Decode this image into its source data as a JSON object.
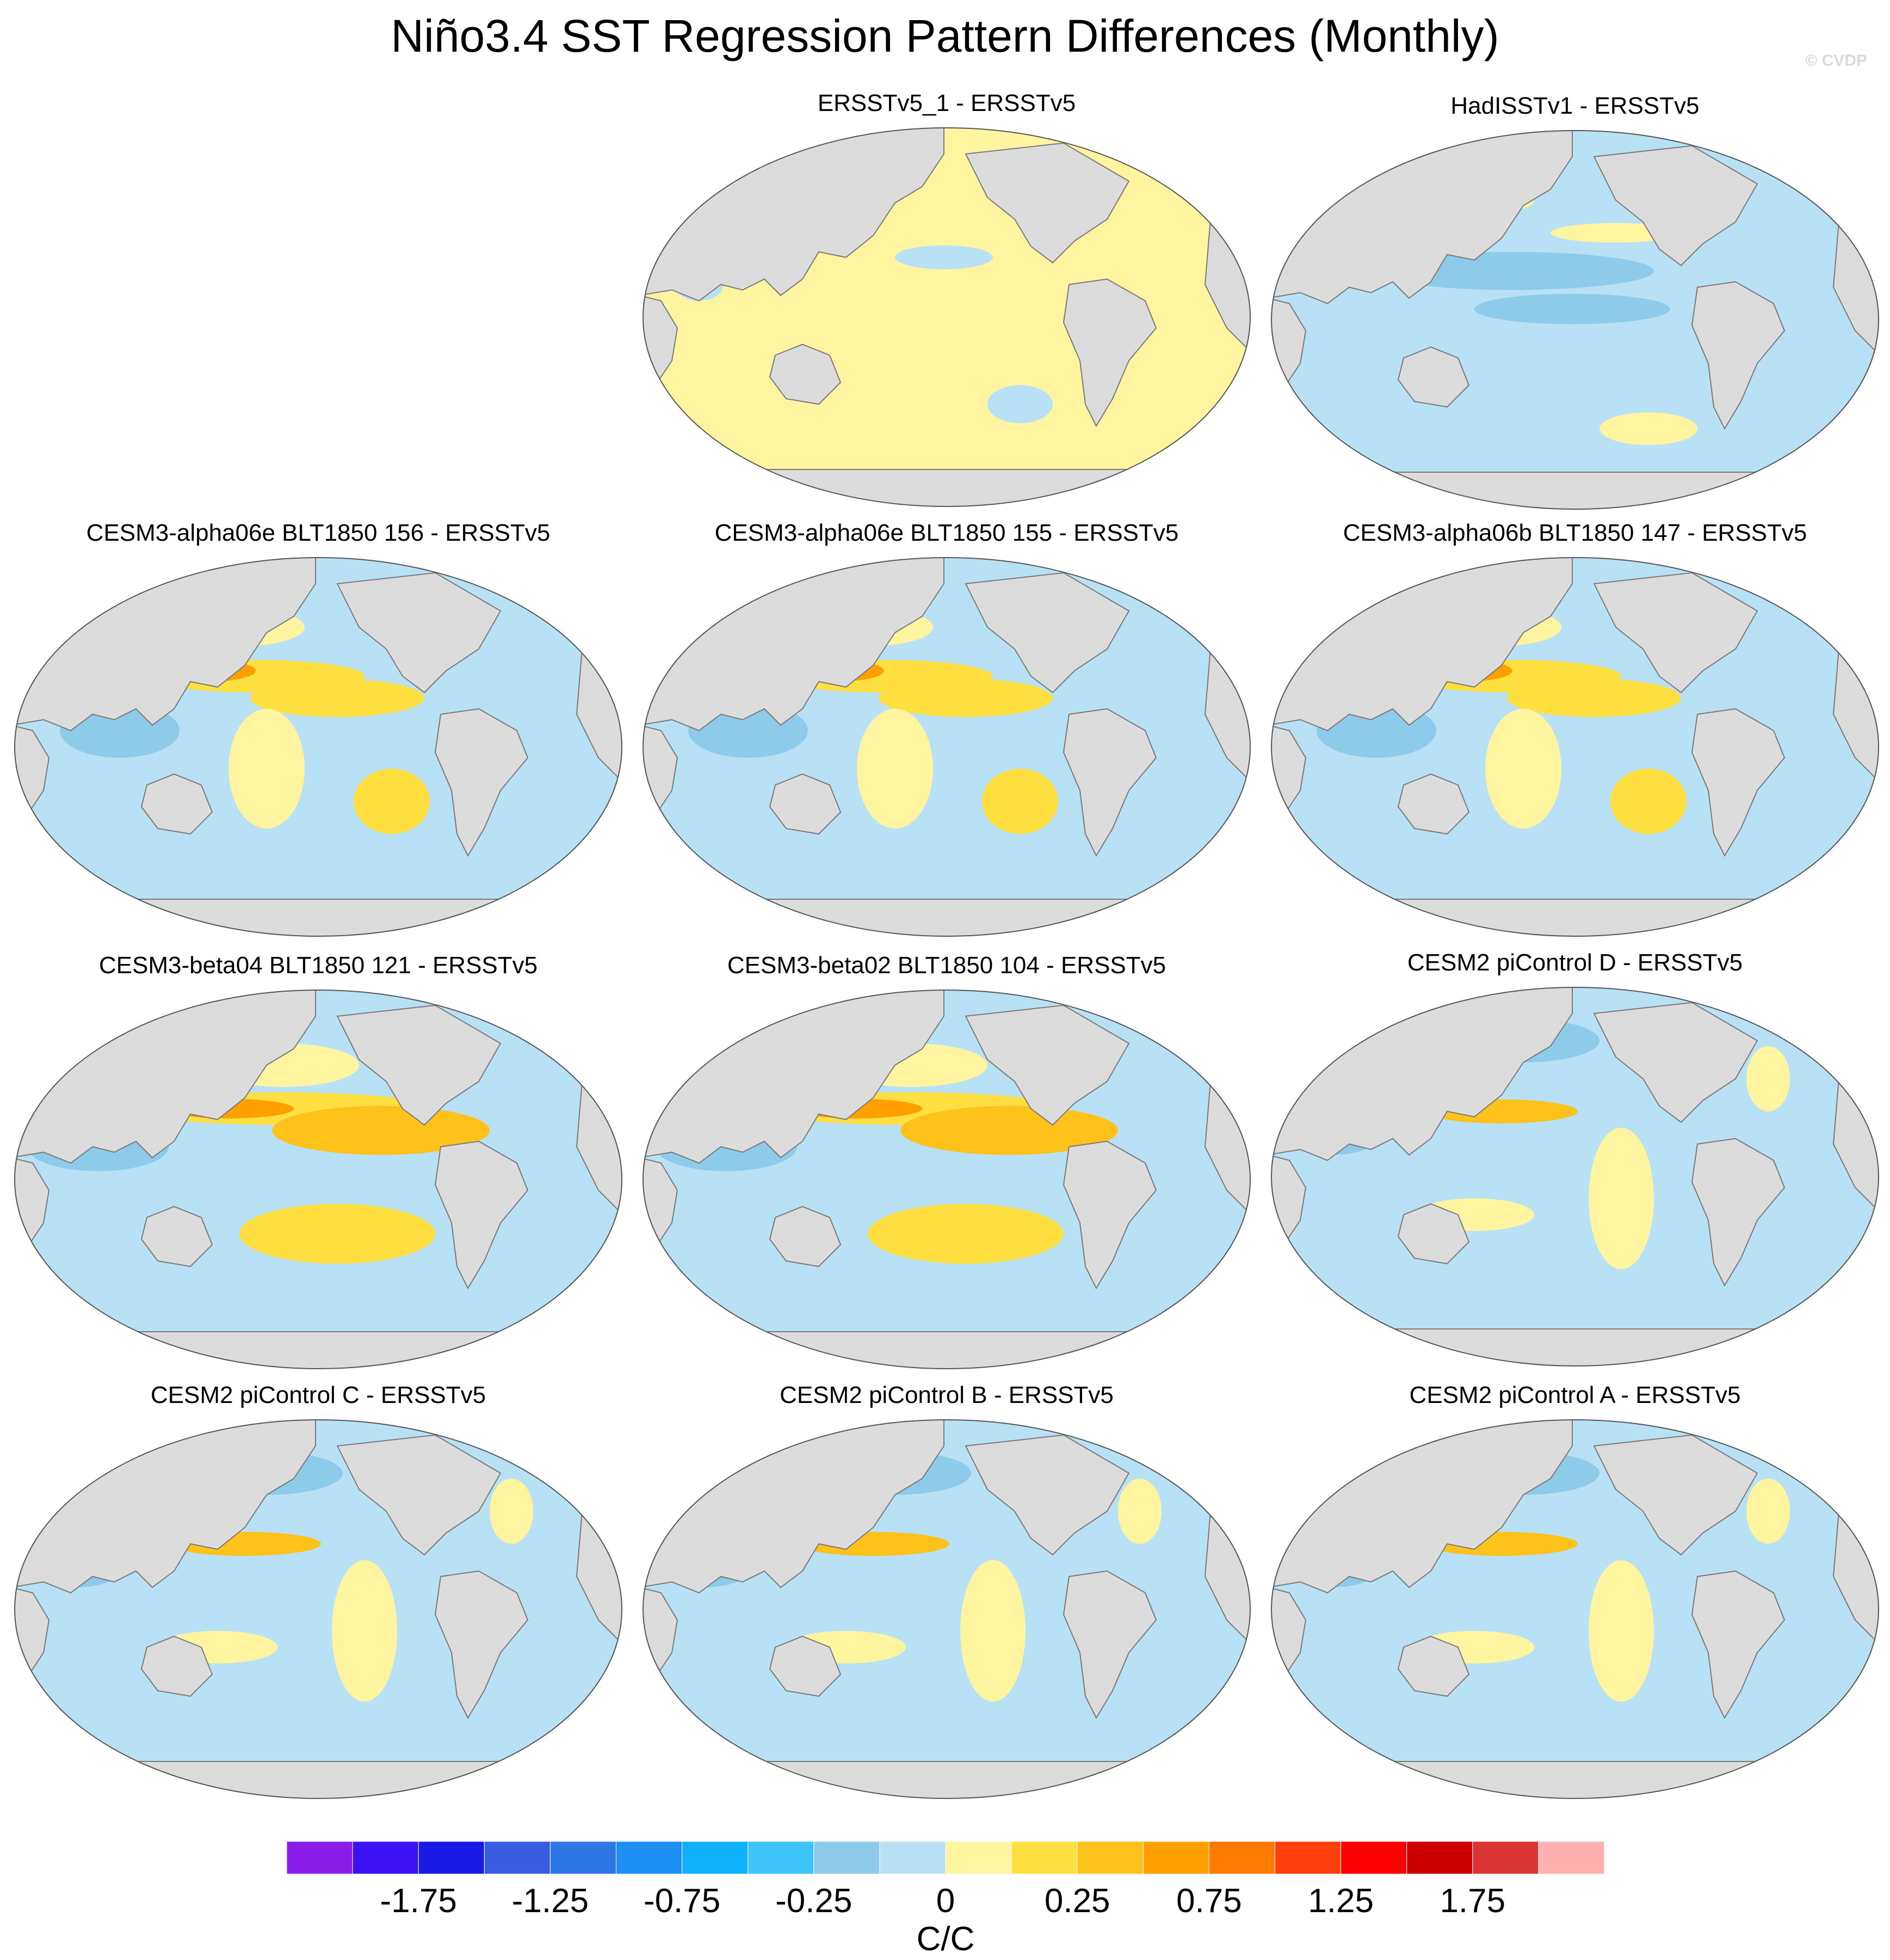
{
  "title": "Niño3.4 SST Regression Pattern Differences (Monthly)",
  "watermark": "© CVDP",
  "panels": [
    {
      "title": "ERSSTv5_1 - ERSSTv5",
      "style": "uniform-positive"
    },
    {
      "title": "HadISSTv1 - ERSSTv5",
      "style": "mostly-negative"
    },
    {
      "title": "CESM3-alpha06e BLT1850 156 - ERSSTv5",
      "style": "model"
    },
    {
      "title": "CESM3-alpha06e BLT1850 155 - ERSSTv5",
      "style": "model"
    },
    {
      "title": "CESM3-alpha06b BLT1850 147 - ERSSTv5",
      "style": "model"
    },
    {
      "title": "CESM3-beta04 BLT1850 121 - ERSSTv5",
      "style": "model-strong"
    },
    {
      "title": "CESM3-beta02 BLT1850 104 - ERSSTv5",
      "style": "model-strong"
    },
    {
      "title": "CESM2 piControl D - ERSSTv5",
      "style": "cesm2"
    },
    {
      "title": "CESM2 piControl C - ERSSTv5",
      "style": "cesm2"
    },
    {
      "title": "CESM2 piControl B - ERSSTv5",
      "style": "cesm2"
    },
    {
      "title": "CESM2 piControl A - ERSSTv5",
      "style": "cesm2"
    }
  ],
  "colorbar": {
    "unit": "C/C",
    "tick_labels": [
      "-1.75",
      "-1.25",
      "-0.75",
      "-0.25",
      "0",
      "0.25",
      "0.75",
      "1.25",
      "1.75"
    ],
    "colors": [
      "#8a1ee8",
      "#3c12f5",
      "#1a1ae6",
      "#3a5ce0",
      "#2f76e6",
      "#1e90f5",
      "#0fb2fa",
      "#3ec4f9",
      "#8ecbea",
      "#b9e1f5",
      "#fff5a0",
      "#ffe040",
      "#ffc21a",
      "#ff9f00",
      "#ff7a00",
      "#ff3e0e",
      "#ff0000",
      "#cc0000",
      "#d93434",
      "#ffb0b0"
    ]
  },
  "palette": {
    "land": "#dcdcdc",
    "ocean_neg_light": "#b9e1f5",
    "ocean_neg_med": "#8ecbea",
    "ocean_neg_strong": "#3ec4f9",
    "ocean_pos_light": "#fff5a0",
    "ocean_pos_med": "#ffe040",
    "ocean_pos_strong": "#ffc21a",
    "ocean_pos_stronger": "#ff9f00"
  }
}
